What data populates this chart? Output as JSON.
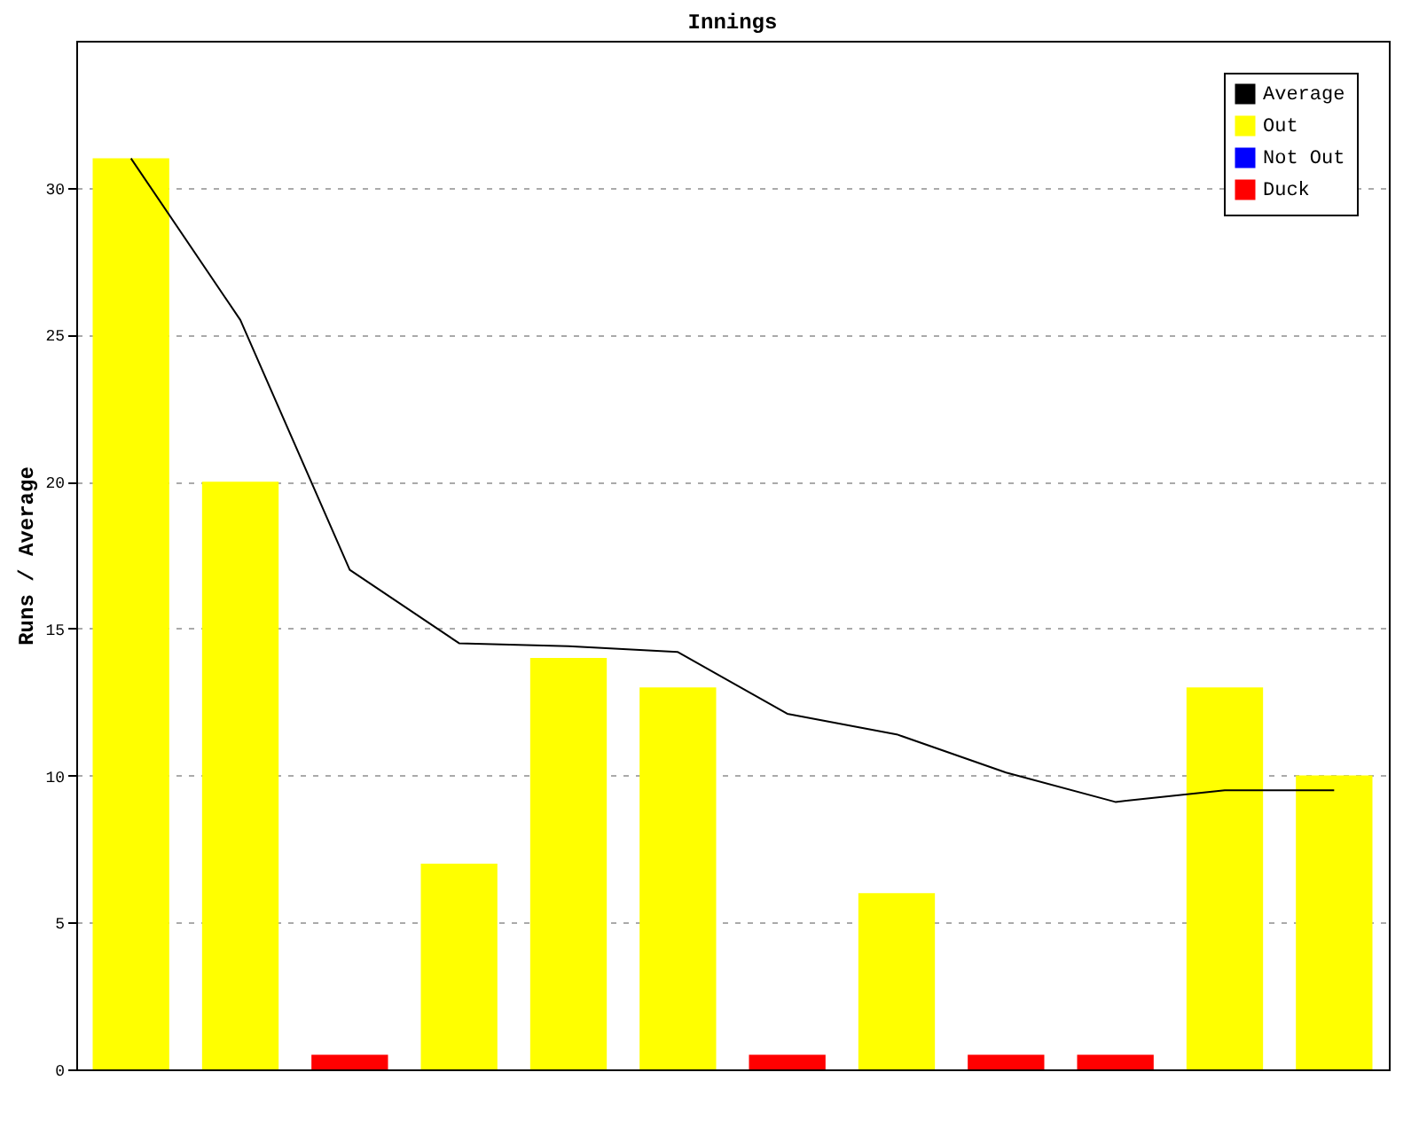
{
  "chart_data": {
    "type": "bar",
    "title": "Innings",
    "ylabel": "Runs / Average",
    "categories": [
      null,
      null,
      null,
      null,
      null,
      null,
      null,
      null,
      null,
      null,
      null,
      null
    ],
    "series": [
      {
        "name": "Average",
        "type": "line",
        "color": "#000000",
        "values": [
          31,
          25.5,
          17,
          14.5,
          14.4,
          14.2,
          12.1,
          11.4,
          10.1,
          9.1,
          9.5,
          9.5
        ]
      },
      {
        "name": "Out",
        "color": "#ffff00",
        "values": [
          31,
          20,
          null,
          7,
          14,
          13,
          null,
          6,
          null,
          null,
          13,
          10
        ]
      },
      {
        "name": "Not Out",
        "color": "#0000ff",
        "values": [
          null,
          null,
          null,
          null,
          null,
          null,
          null,
          null,
          null,
          null,
          null,
          null
        ]
      },
      {
        "name": "Duck",
        "color": "#ff0000",
        "values": [
          null,
          null,
          0.5,
          null,
          null,
          null,
          0.5,
          null,
          0.5,
          0.5,
          null,
          null
        ]
      }
    ],
    "ylim": [
      0,
      35
    ],
    "yticks": [
      0,
      5,
      10,
      15,
      20,
      25,
      30
    ],
    "grid": "y",
    "legend": "top right",
    "tick_labels": "y"
  }
}
